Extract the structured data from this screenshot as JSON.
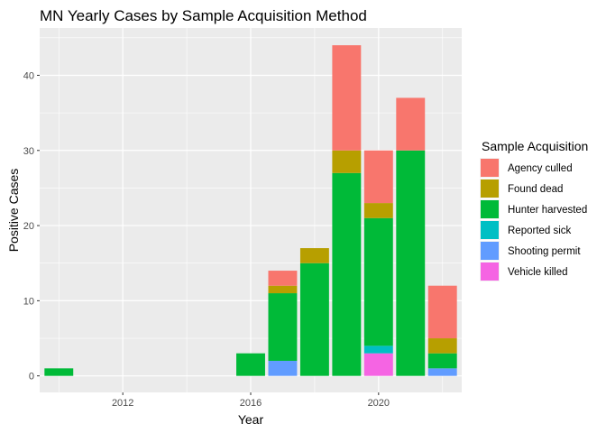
{
  "chart_data": {
    "type": "bar",
    "stacked": true,
    "title": "MN Yearly Cases by Sample Acquisition Method",
    "xlabel": "Year",
    "ylabel": "Positive Cases",
    "xlim": [
      2009.4,
      2022.6
    ],
    "ylim": [
      -2.2,
      46.3
    ],
    "x_ticks": [
      2012,
      2016,
      2020
    ],
    "y_ticks": [
      0,
      10,
      20,
      30,
      40
    ],
    "grid": true,
    "legend": {
      "title": "Sample Acquisition",
      "position": "right"
    },
    "series": [
      {
        "name": "Agency culled",
        "color": "#F8766D"
      },
      {
        "name": "Found dead",
        "color": "#B79F00"
      },
      {
        "name": "Hunter harvested",
        "color": "#00BA38"
      },
      {
        "name": "Reported sick",
        "color": "#00BFC4"
      },
      {
        "name": "Shooting permit",
        "color": "#619CFF"
      },
      {
        "name": "Vehicle killed",
        "color": "#F564E3"
      }
    ],
    "stack_order_bottom_to_top": [
      "Vehicle killed",
      "Shooting permit",
      "Reported sick",
      "Hunter harvested",
      "Found dead",
      "Agency culled"
    ],
    "data": [
      {
        "year": 2010,
        "values": {
          "Hunter harvested": 1
        }
      },
      {
        "year": 2016,
        "values": {
          "Hunter harvested": 3
        }
      },
      {
        "year": 2017,
        "values": {
          "Shooting permit": 2,
          "Hunter harvested": 9,
          "Found dead": 1,
          "Agency culled": 2
        }
      },
      {
        "year": 2018,
        "values": {
          "Hunter harvested": 15,
          "Found dead": 2
        }
      },
      {
        "year": 2019,
        "values": {
          "Hunter harvested": 27,
          "Found dead": 3,
          "Agency culled": 14
        }
      },
      {
        "year": 2020,
        "values": {
          "Vehicle killed": 3,
          "Reported sick": 1,
          "Hunter harvested": 17,
          "Found dead": 2,
          "Agency culled": 7
        }
      },
      {
        "year": 2021,
        "values": {
          "Hunter harvested": 30,
          "Agency culled": 7
        }
      },
      {
        "year": 2022,
        "values": {
          "Shooting permit": 1,
          "Hunter harvested": 2,
          "Found dead": 2,
          "Agency culled": 7
        }
      }
    ]
  }
}
